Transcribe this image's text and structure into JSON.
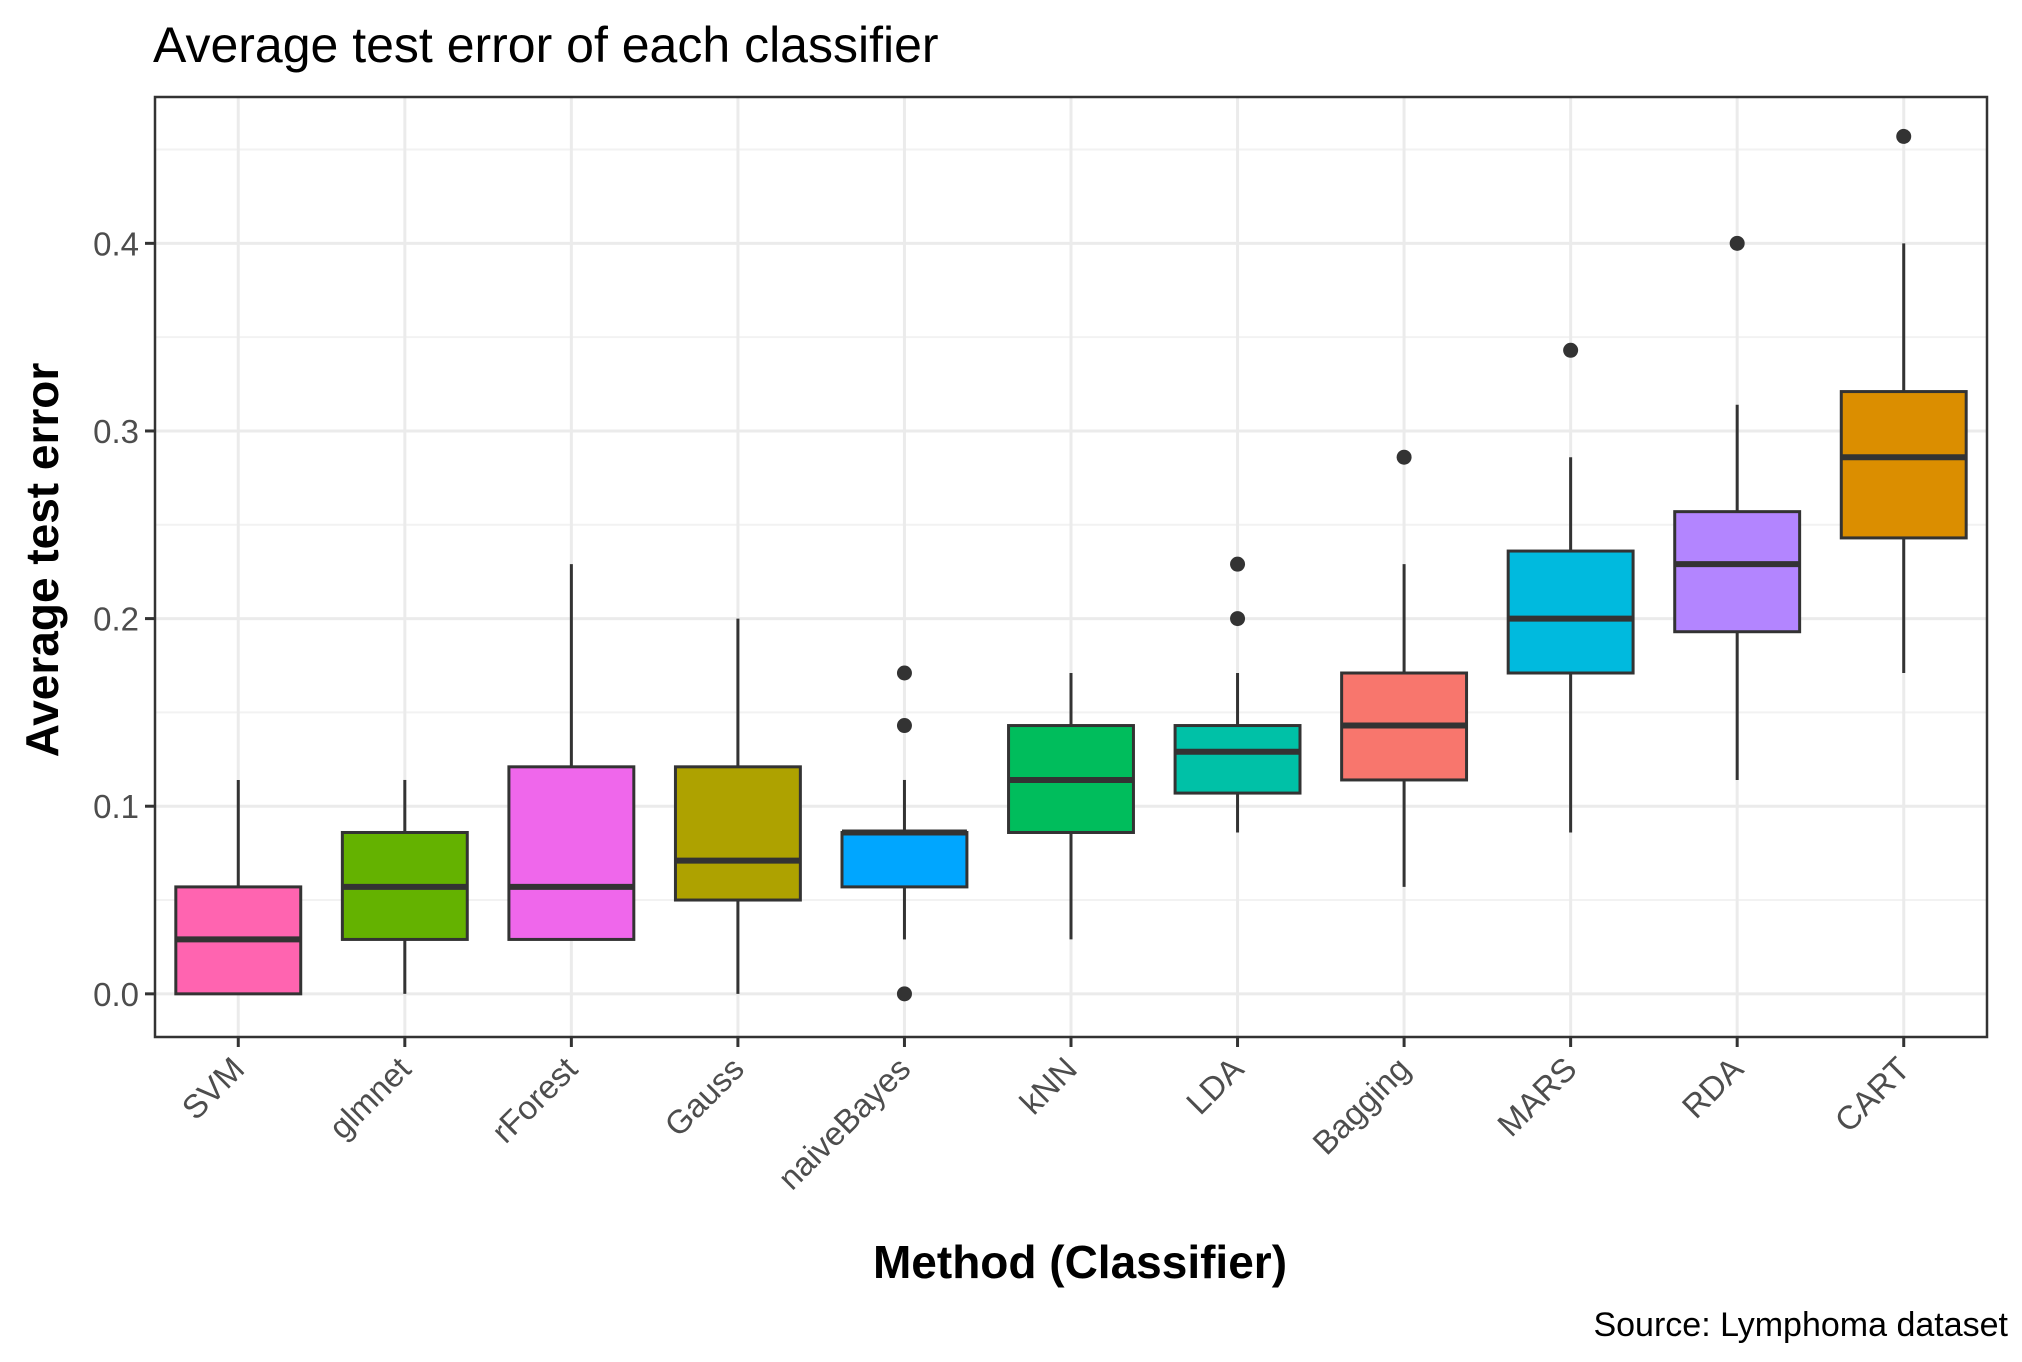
{
  "chart_data": {
    "type": "boxplot",
    "title": "Average test error of each classifier",
    "caption": "Source: Lymphoma dataset",
    "xlabel": "Method (Classifier)",
    "ylabel": "Average test error",
    "ylim": [
      -0.023,
      0.478
    ],
    "yticks": [
      "0.0",
      "0.1",
      "0.2",
      "0.3",
      "0.4"
    ],
    "ytick_values": [
      0.0,
      0.1,
      0.2,
      0.3,
      0.4
    ],
    "grid": true,
    "legend": "none",
    "categories": [
      "SVM",
      "glmnet",
      "rForest",
      "Gauss",
      "naiveBayes",
      "kNN",
      "LDA",
      "Bagging",
      "MARS",
      "RDA",
      "CART"
    ],
    "series": [
      {
        "category": "SVM",
        "color": "#FF64B0",
        "whisker_low": 0.0,
        "q1": 0.0,
        "median": 0.029,
        "q3": 0.057,
        "whisker_high": 0.114,
        "outliers": []
      },
      {
        "category": "glmnet",
        "color": "#64B200",
        "whisker_low": 0.0,
        "q1": 0.029,
        "median": 0.057,
        "q3": 0.086,
        "whisker_high": 0.114,
        "outliers": []
      },
      {
        "category": "rForest",
        "color": "#EF67EB",
        "whisker_low": 0.029,
        "q1": 0.029,
        "median": 0.057,
        "q3": 0.121,
        "whisker_high": 0.229,
        "outliers": []
      },
      {
        "category": "Gauss",
        "color": "#AEA200",
        "whisker_low": 0.0,
        "q1": 0.05,
        "median": 0.071,
        "q3": 0.121,
        "whisker_high": 0.2,
        "outliers": []
      },
      {
        "category": "naiveBayes",
        "color": "#00A6FF",
        "whisker_low": 0.029,
        "q1": 0.057,
        "median": 0.086,
        "q3": 0.086,
        "whisker_high": 0.114,
        "outliers": [
          0.0,
          0.143,
          0.171
        ]
      },
      {
        "category": "kNN",
        "color": "#00BD5C",
        "whisker_low": 0.029,
        "q1": 0.086,
        "median": 0.114,
        "q3": 0.143,
        "whisker_high": 0.171,
        "outliers": []
      },
      {
        "category": "LDA",
        "color": "#00C1A7",
        "whisker_low": 0.086,
        "q1": 0.107,
        "median": 0.129,
        "q3": 0.143,
        "whisker_high": 0.171,
        "outliers": [
          0.2,
          0.229
        ]
      },
      {
        "category": "Bagging",
        "color": "#F8766D",
        "whisker_low": 0.057,
        "q1": 0.114,
        "median": 0.143,
        "q3": 0.171,
        "whisker_high": 0.229,
        "outliers": [
          0.286
        ]
      },
      {
        "category": "MARS",
        "color": "#00BADE",
        "whisker_low": 0.086,
        "q1": 0.171,
        "median": 0.2,
        "q3": 0.236,
        "whisker_high": 0.286,
        "outliers": [
          0.343
        ]
      },
      {
        "category": "RDA",
        "color": "#B385FF",
        "whisker_low": 0.114,
        "q1": 0.193,
        "median": 0.229,
        "q3": 0.257,
        "whisker_high": 0.314,
        "outliers": [
          0.4
        ]
      },
      {
        "category": "CART",
        "color": "#DB8E00",
        "whisker_low": 0.171,
        "q1": 0.243,
        "median": 0.286,
        "q3": 0.321,
        "whisker_high": 0.4,
        "outliers": [
          0.457
        ]
      }
    ]
  }
}
